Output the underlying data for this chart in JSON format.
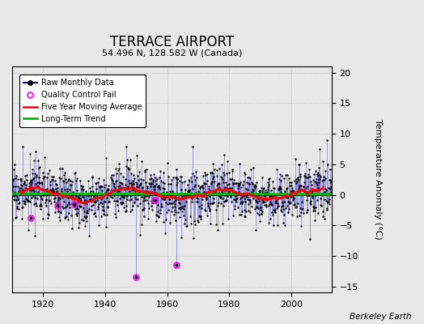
{
  "title": "TERRACE AIRPORT",
  "subtitle": "54.496 N, 128.582 W (Canada)",
  "ylabel": "Temperature Anomaly (°C)",
  "credit": "Berkeley Earth",
  "year_start": 1910,
  "year_end": 2013,
  "ylim": [
    -16,
    21
  ],
  "yticks": [
    -15,
    -10,
    -5,
    0,
    5,
    10,
    15,
    20
  ],
  "bar_color": "#6666cc",
  "line_color": "#0000cc",
  "dot_color": "#000000",
  "ma_color": "#ff0000",
  "trend_color": "#00bb00",
  "qc_color": "#ff00ff",
  "background_color": "#e8e8e8",
  "plot_bg_color": "#e8e8e8",
  "legend_labels": [
    "Raw Monthly Data",
    "Quality Control Fail",
    "Five Year Moving Average",
    "Long-Term Trend"
  ],
  "seed": 17
}
